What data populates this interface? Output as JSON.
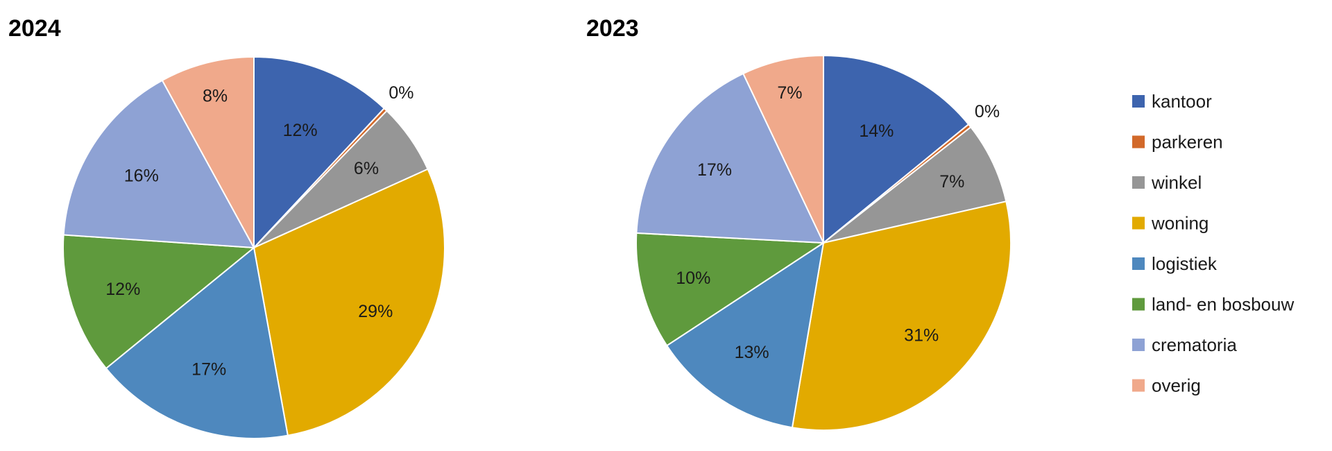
{
  "chart_data": [
    {
      "type": "pie",
      "title": "2024",
      "categories": [
        "kantoor",
        "parkeren",
        "winkel",
        "woning",
        "logistiek",
        "land- en bosbouw",
        "crematoria",
        "overig"
      ],
      "values": [
        12,
        0.3,
        6,
        29,
        17,
        12,
        16,
        8
      ],
      "labels": [
        "12%",
        "0%",
        "6%",
        "29%",
        "17%",
        "12%",
        "16%",
        "8%"
      ]
    },
    {
      "type": "pie",
      "title": "2023",
      "categories": [
        "kantoor",
        "parkeren",
        "winkel",
        "woning",
        "logistiek",
        "land- en bosbouw",
        "crematoria",
        "overig"
      ],
      "values": [
        14,
        0.3,
        7,
        31,
        13,
        10,
        17,
        7
      ],
      "labels": [
        "14%",
        "0%",
        "7%",
        "31%",
        "13%",
        "10%",
        "17%",
        "7%"
      ]
    }
  ],
  "legend": {
    "placement": "right",
    "items": [
      {
        "label": "kantoor",
        "color": "#3D64AE"
      },
      {
        "label": "parkeren",
        "color": "#D2692A"
      },
      {
        "label": "winkel",
        "color": "#969696"
      },
      {
        "label": "woning",
        "color": "#E2AA00"
      },
      {
        "label": "logistiek",
        "color": "#4E88BE"
      },
      {
        "label": "land- en bosbouw",
        "color": "#5F9A3D"
      },
      {
        "label": "crematoria",
        "color": "#8EA2D4"
      },
      {
        "label": "overig",
        "color": "#F0A98B"
      }
    ]
  }
}
